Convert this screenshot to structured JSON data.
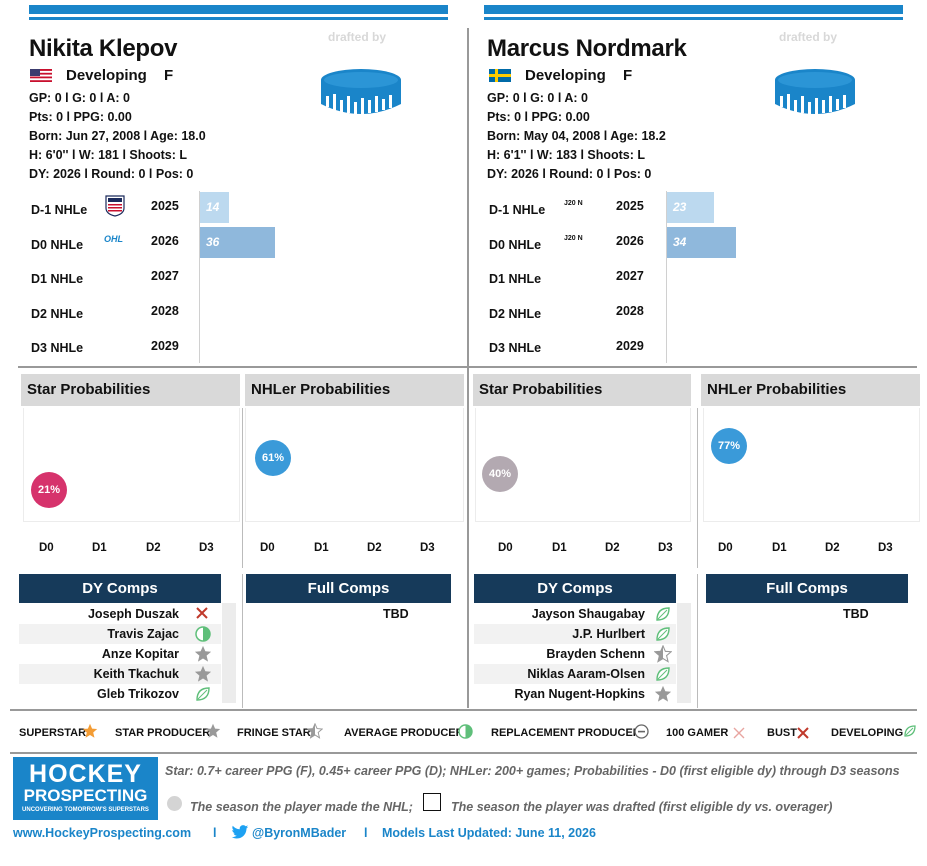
{
  "left": {
    "name": "Nikita Klepov",
    "drafted_by": "drafted by",
    "status": "Developing",
    "position": "F",
    "line1": "GP: 0 l G: 0 l A: 0",
    "line2": "Pts: 0 l PPG: 0.00",
    "line3": "Born: Jun 27, 2008 l Age: 18.0",
    "line4": "H: 6'0'' l W: 181 l Shoots: L",
    "line5": "DY: 2026 l Round: 0 l Pos: 0",
    "rows": [
      {
        "label": "D-1 NHLe",
        "league": "USHL",
        "year": "2025",
        "value": "14"
      },
      {
        "label": "D0 NHLe",
        "league": "OHL",
        "year": "2026",
        "value": "36"
      },
      {
        "label": "D1 NHLe",
        "league": "",
        "year": "2027",
        "value": ""
      },
      {
        "label": "D2 NHLe",
        "league": "",
        "year": "2028",
        "value": ""
      },
      {
        "label": "D3 NHLe",
        "league": "",
        "year": "2029",
        "value": ""
      }
    ],
    "star_title": "Star Probabilities",
    "star_pct": "21%",
    "nhler_title": "NHLer Probabilities",
    "nhler_pct": "61%",
    "dy_comps_title": "DY Comps",
    "dy_comps": [
      "Joseph Duszak",
      "Travis Zajac",
      "Anze Kopitar",
      "Keith Tkachuk",
      "Gleb Trikozov"
    ],
    "full_comps_title": "Full Comps",
    "full_comps": "TBD"
  },
  "right": {
    "name": "Marcus Nordmark",
    "drafted_by": "drafted by",
    "status": "Developing",
    "position": "F",
    "line1": "GP: 0 l G: 0 l A: 0",
    "line2": "Pts: 0 l PPG: 0.00",
    "line3": "Born: May 04, 2008 l Age: 18.2",
    "line4": "H: 6'1'' l W: 183 l Shoots: L",
    "line5": "DY: 2026 l Round: 0 l Pos: 0",
    "rows": [
      {
        "label": "D-1 NHLe",
        "league": "J20 N",
        "year": "2025",
        "value": "23"
      },
      {
        "label": "D0 NHLe",
        "league": "J20 N",
        "year": "2026",
        "value": "34"
      },
      {
        "label": "D1 NHLe",
        "league": "",
        "year": "2027",
        "value": ""
      },
      {
        "label": "D2 NHLe",
        "league": "",
        "year": "2028",
        "value": ""
      },
      {
        "label": "D3 NHLe",
        "league": "",
        "year": "2029",
        "value": ""
      }
    ],
    "star_title": "Star Probabilities",
    "star_pct": "40%",
    "nhler_title": "NHLer Probabilities",
    "nhler_pct": "77%",
    "dy_comps_title": "DY Comps",
    "dy_comps": [
      "Jayson Shaugabay",
      "J.P. Hurlbert",
      "Brayden Schenn",
      "Niklas Aaram-Olsen",
      "Ryan Nugent-Hopkins"
    ],
    "full_comps_title": "Full Comps",
    "full_comps": "TBD"
  },
  "dlabels": [
    "D0",
    "D1",
    "D2",
    "D3"
  ],
  "legend": {
    "superstar": "SUPERSTAR",
    "star_producer": "STAR PRODUCER",
    "fringe_star": "FRINGE STAR",
    "average_producer": "AVERAGE PRODUCER",
    "replacement_producer": "REPLACEMENT PRODUCER",
    "gamer_100": "100 GAMER",
    "bust": "BUST",
    "developing": "DEVELOPING"
  },
  "footer": {
    "logo_line1": "HOCKEY",
    "logo_line2": "PROSPECTING",
    "logo_tagline": "UNCOVERING TOMORROW'S SUPERSTARS",
    "definition": "Star: 0.7+ career PPG (F), 0.45+ career PPG (D); NHLer: 200+ games; Probabilities - D0 (first eligible dy) through D3 seasons",
    "nhl_note": "The season the player made the NHL;",
    "draft_note": "The season the player was drafted (first eligible dy vs. overager)",
    "website": "www.HockeyProspecting.com",
    "sep": "l",
    "twitter": "@ByronMBader",
    "updated": "Models Last Updated: June 11, 2026"
  },
  "colors": {
    "accent": "#1a85c9",
    "navy": "#163a5a",
    "star_left": "#d6336c",
    "star_right": "#b3a9b1",
    "nhler": "#3a9ad9",
    "bar_light": "#bcd9ef",
    "bar_mid": "#8fb8dc"
  }
}
